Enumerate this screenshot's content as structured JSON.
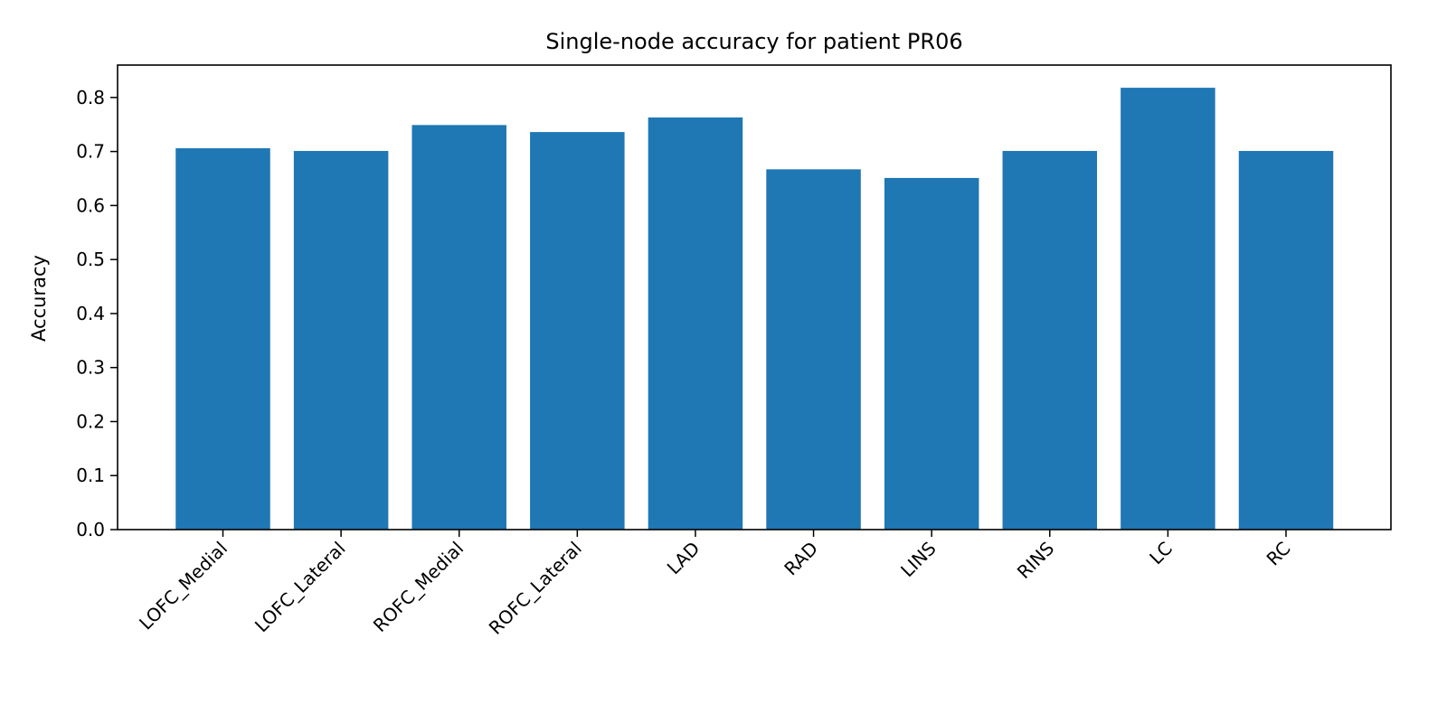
{
  "chart_data": {
    "type": "bar",
    "title": "Single-node accuracy for patient PR06",
    "xlabel": "",
    "ylabel": "Accuracy",
    "categories": [
      "LOFC_Medial",
      "LOFC_Lateral",
      "ROFC_Medial",
      "ROFC_Lateral",
      "LAD",
      "RAD",
      "LINS",
      "RINS",
      "LC",
      "RC"
    ],
    "values": [
      0.706,
      0.701,
      0.749,
      0.736,
      0.763,
      0.667,
      0.651,
      0.701,
      0.818,
      0.701
    ],
    "ylim": [
      0,
      0.86
    ],
    "yticks": [
      "0.0",
      "0.1",
      "0.2",
      "0.3",
      "0.4",
      "0.5",
      "0.6",
      "0.7",
      "0.8"
    ],
    "bar_color": "#1f77b4",
    "grid": false,
    "legend": "none"
  }
}
